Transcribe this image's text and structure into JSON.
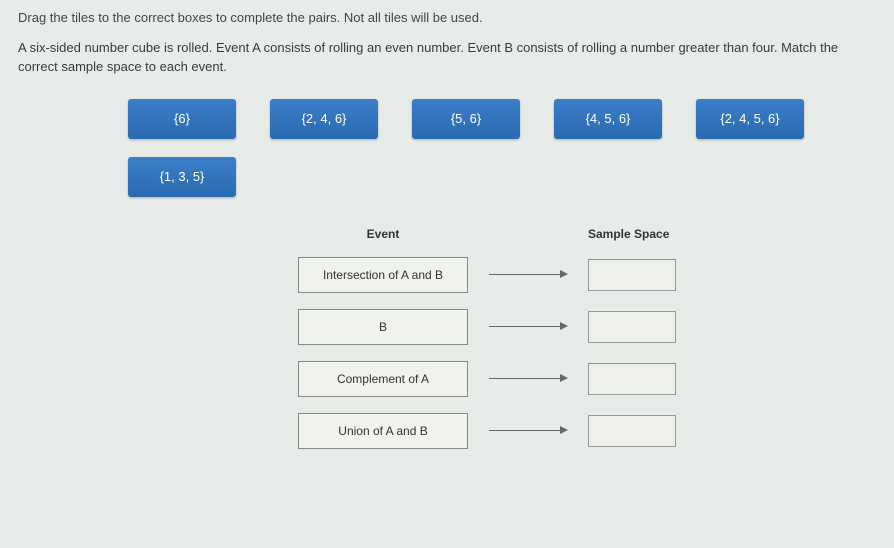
{
  "instruction": "Drag the tiles to the correct boxes to complete the pairs. Not all tiles will be used.",
  "problem_line1": "A six-sided number cube is rolled. Event A consists of rolling an even number. Event B consists of rolling a number greater than four. Match the",
  "problem_line2": "correct sample space to each event.",
  "tiles_row1": [
    {
      "label": "{6}"
    },
    {
      "label": "{2, 4, 6}"
    },
    {
      "label": "{5, 6}"
    },
    {
      "label": "{4, 5, 6}"
    },
    {
      "label": "{2, 4, 5, 6}"
    }
  ],
  "tiles_row2": [
    {
      "label": "{1, 3, 5}"
    }
  ],
  "headers": {
    "event": "Event",
    "space": "Sample Space"
  },
  "pairs": [
    {
      "event": "Intersection of A and B"
    },
    {
      "event": "B"
    },
    {
      "event": "Complement of A"
    },
    {
      "event": "Union of A and B"
    }
  ]
}
